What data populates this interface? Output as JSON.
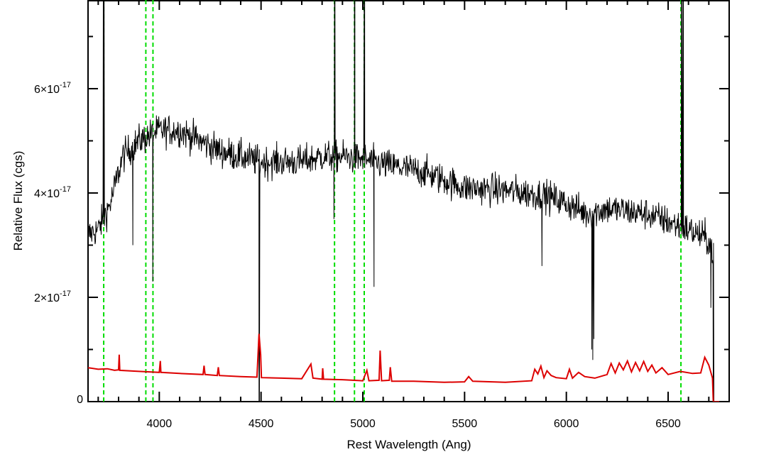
{
  "chart_data": {
    "type": "line",
    "title": "",
    "xlabel": "Rest Wavelength (Ang)",
    "ylabel": "Relative Flux (cgs)",
    "xlim": [
      3650,
      6800
    ],
    "ylim": [
      0,
      7.7e-17
    ],
    "x_ticks": [
      {
        "value": 4000,
        "label": "4000"
      },
      {
        "value": 4500,
        "label": "4500"
      },
      {
        "value": 5000,
        "label": "5000"
      },
      {
        "value": 5500,
        "label": "5500"
      },
      {
        "value": 6000,
        "label": "6000"
      },
      {
        "value": 6500,
        "label": "6500"
      }
    ],
    "y_ticks": [
      {
        "value": 0,
        "label": "0",
        "exp": ""
      },
      {
        "value": 2e-17,
        "label": "2×10",
        "exp": "-17"
      },
      {
        "value": 4e-17,
        "label": "4×10",
        "exp": "-17"
      },
      {
        "value": 6e-17,
        "label": "6×10",
        "exp": "-17"
      }
    ],
    "grid": false,
    "line_markers": {
      "color": "#00dd00",
      "style": "dashed",
      "x": [
        3727,
        3934,
        3969,
        4861,
        4959,
        5007,
        6563
      ]
    },
    "series": [
      {
        "color": "#000000",
        "noise_amplitude": 2.2e-18,
        "continuum": [
          [
            3650,
            3.2e-17
          ],
          [
            3700,
            3.3e-17
          ],
          [
            3760,
            3.8e-17
          ],
          [
            3820,
            4.7e-17
          ],
          [
            3900,
            5e-17
          ],
          [
            4000,
            5.2e-17
          ],
          [
            4100,
            5.2e-17
          ],
          [
            4200,
            5e-17
          ],
          [
            4300,
            4.8e-17
          ],
          [
            4400,
            4.7e-17
          ],
          [
            4500,
            4.6e-17
          ],
          [
            4600,
            4.6e-17
          ],
          [
            4700,
            4.6e-17
          ],
          [
            4800,
            4.7e-17
          ],
          [
            4900,
            4.7e-17
          ],
          [
            5000,
            4.65e-17
          ],
          [
            5100,
            4.55e-17
          ],
          [
            5300,
            4.4e-17
          ],
          [
            5500,
            4.1e-17
          ],
          [
            5700,
            4.05e-17
          ],
          [
            5900,
            3.95e-17
          ],
          [
            6000,
            3.8e-17
          ],
          [
            6100,
            3.6e-17
          ],
          [
            6200,
            3.7e-17
          ],
          [
            6400,
            3.6e-17
          ],
          [
            6600,
            3.3e-17
          ],
          [
            6700,
            3.1e-17
          ],
          [
            6725,
            2.8e-17
          ]
        ],
        "features": [
          [
            3725,
            8e-17
          ],
          [
            3727,
            8e-17
          ],
          [
            3729,
            8e-17
          ],
          [
            3870,
            3e-17
          ],
          [
            3968,
            2.3e-17
          ],
          [
            4490,
            0
          ],
          [
            4492,
            0
          ],
          [
            4861,
            8e-17
          ],
          [
            4863,
            8e-17
          ],
          [
            4858,
            3.5e-17
          ],
          [
            4959,
            8e-17
          ],
          [
            4961,
            8e-17
          ],
          [
            5007,
            8e-17
          ],
          [
            5009,
            8e-17
          ],
          [
            5055,
            2.2e-17
          ],
          [
            5880,
            2.6e-17
          ],
          [
            6125,
            1e-17
          ],
          [
            6130,
            8e-18
          ],
          [
            6135,
            1.2e-17
          ],
          [
            6565,
            8e-17
          ],
          [
            6570,
            8e-17
          ],
          [
            6575,
            8e-17
          ],
          [
            6710,
            1.8e-17
          ],
          [
            6722,
            0
          ],
          [
            6725,
            0
          ]
        ]
      },
      {
        "color": "#dd0000",
        "points": [
          [
            3650,
            6.5e-18
          ],
          [
            3700,
            6.2e-18
          ],
          [
            3745,
            6.3e-18
          ],
          [
            3780,
            6e-18
          ],
          [
            3800,
            6.1e-18
          ],
          [
            3803,
            9e-18
          ],
          [
            3806,
            6e-18
          ],
          [
            3900,
            5.8e-18
          ],
          [
            4000,
            5.6e-18
          ],
          [
            4005,
            7.8e-18
          ],
          [
            4008,
            5.6e-18
          ],
          [
            4100,
            5.4e-18
          ],
          [
            4215,
            5.2e-18
          ],
          [
            4220,
            6.9e-18
          ],
          [
            4225,
            5.2e-18
          ],
          [
            4285,
            5e-18
          ],
          [
            4290,
            6.6e-18
          ],
          [
            4295,
            5e-18
          ],
          [
            4400,
            4.8e-18
          ],
          [
            4480,
            4.7e-18
          ],
          [
            4490,
            1.3e-17
          ],
          [
            4498,
            9e-18
          ],
          [
            4502,
            4.6e-18
          ],
          [
            4600,
            4.5e-18
          ],
          [
            4700,
            4.4e-18
          ],
          [
            4745,
            7.2e-18
          ],
          [
            4755,
            4.5e-18
          ],
          [
            4800,
            4.3e-18
          ],
          [
            4803,
            6.4e-18
          ],
          [
            4807,
            4.3e-18
          ],
          [
            4900,
            4.2e-18
          ],
          [
            5000,
            4e-18
          ],
          [
            5020,
            6e-18
          ],
          [
            5030,
            4e-18
          ],
          [
            5080,
            4.1e-18
          ],
          [
            5085,
            9.8e-18
          ],
          [
            5092,
            4e-18
          ],
          [
            5130,
            4.1e-18
          ],
          [
            5135,
            6.6e-18
          ],
          [
            5142,
            3.9e-18
          ],
          [
            5250,
            3.9e-18
          ],
          [
            5400,
            3.7e-18
          ],
          [
            5500,
            3.8e-18
          ],
          [
            5520,
            4.8e-18
          ],
          [
            5540,
            3.9e-18
          ],
          [
            5700,
            3.7e-18
          ],
          [
            5830,
            4e-18
          ],
          [
            5845,
            6.2e-18
          ],
          [
            5860,
            5.3e-18
          ],
          [
            5875,
            6.8e-18
          ],
          [
            5890,
            4.6e-18
          ],
          [
            5905,
            5.9e-18
          ],
          [
            5925,
            5e-18
          ],
          [
            5950,
            4.6e-18
          ],
          [
            6000,
            4.4e-18
          ],
          [
            6015,
            6.2e-18
          ],
          [
            6030,
            4.5e-18
          ],
          [
            6060,
            5.6e-18
          ],
          [
            6090,
            4.8e-18
          ],
          [
            6140,
            4.5e-18
          ],
          [
            6200,
            5.2e-18
          ],
          [
            6220,
            7.3e-18
          ],
          [
            6240,
            5.5e-18
          ],
          [
            6260,
            7.4e-18
          ],
          [
            6280,
            6.1e-18
          ],
          [
            6300,
            7.8e-18
          ],
          [
            6320,
            5.7e-18
          ],
          [
            6340,
            7.5e-18
          ],
          [
            6360,
            5.9e-18
          ],
          [
            6380,
            7.7e-18
          ],
          [
            6400,
            5.8e-18
          ],
          [
            6420,
            7e-18
          ],
          [
            6440,
            5.5e-18
          ],
          [
            6470,
            6.5e-18
          ],
          [
            6500,
            5.2e-18
          ],
          [
            6560,
            5.8e-18
          ],
          [
            6620,
            5.4e-18
          ],
          [
            6660,
            5.5e-18
          ],
          [
            6680,
            8.5e-18
          ],
          [
            6700,
            7e-18
          ],
          [
            6718,
            4.5e-18
          ],
          [
            6722,
            0
          ]
        ]
      }
    ]
  }
}
